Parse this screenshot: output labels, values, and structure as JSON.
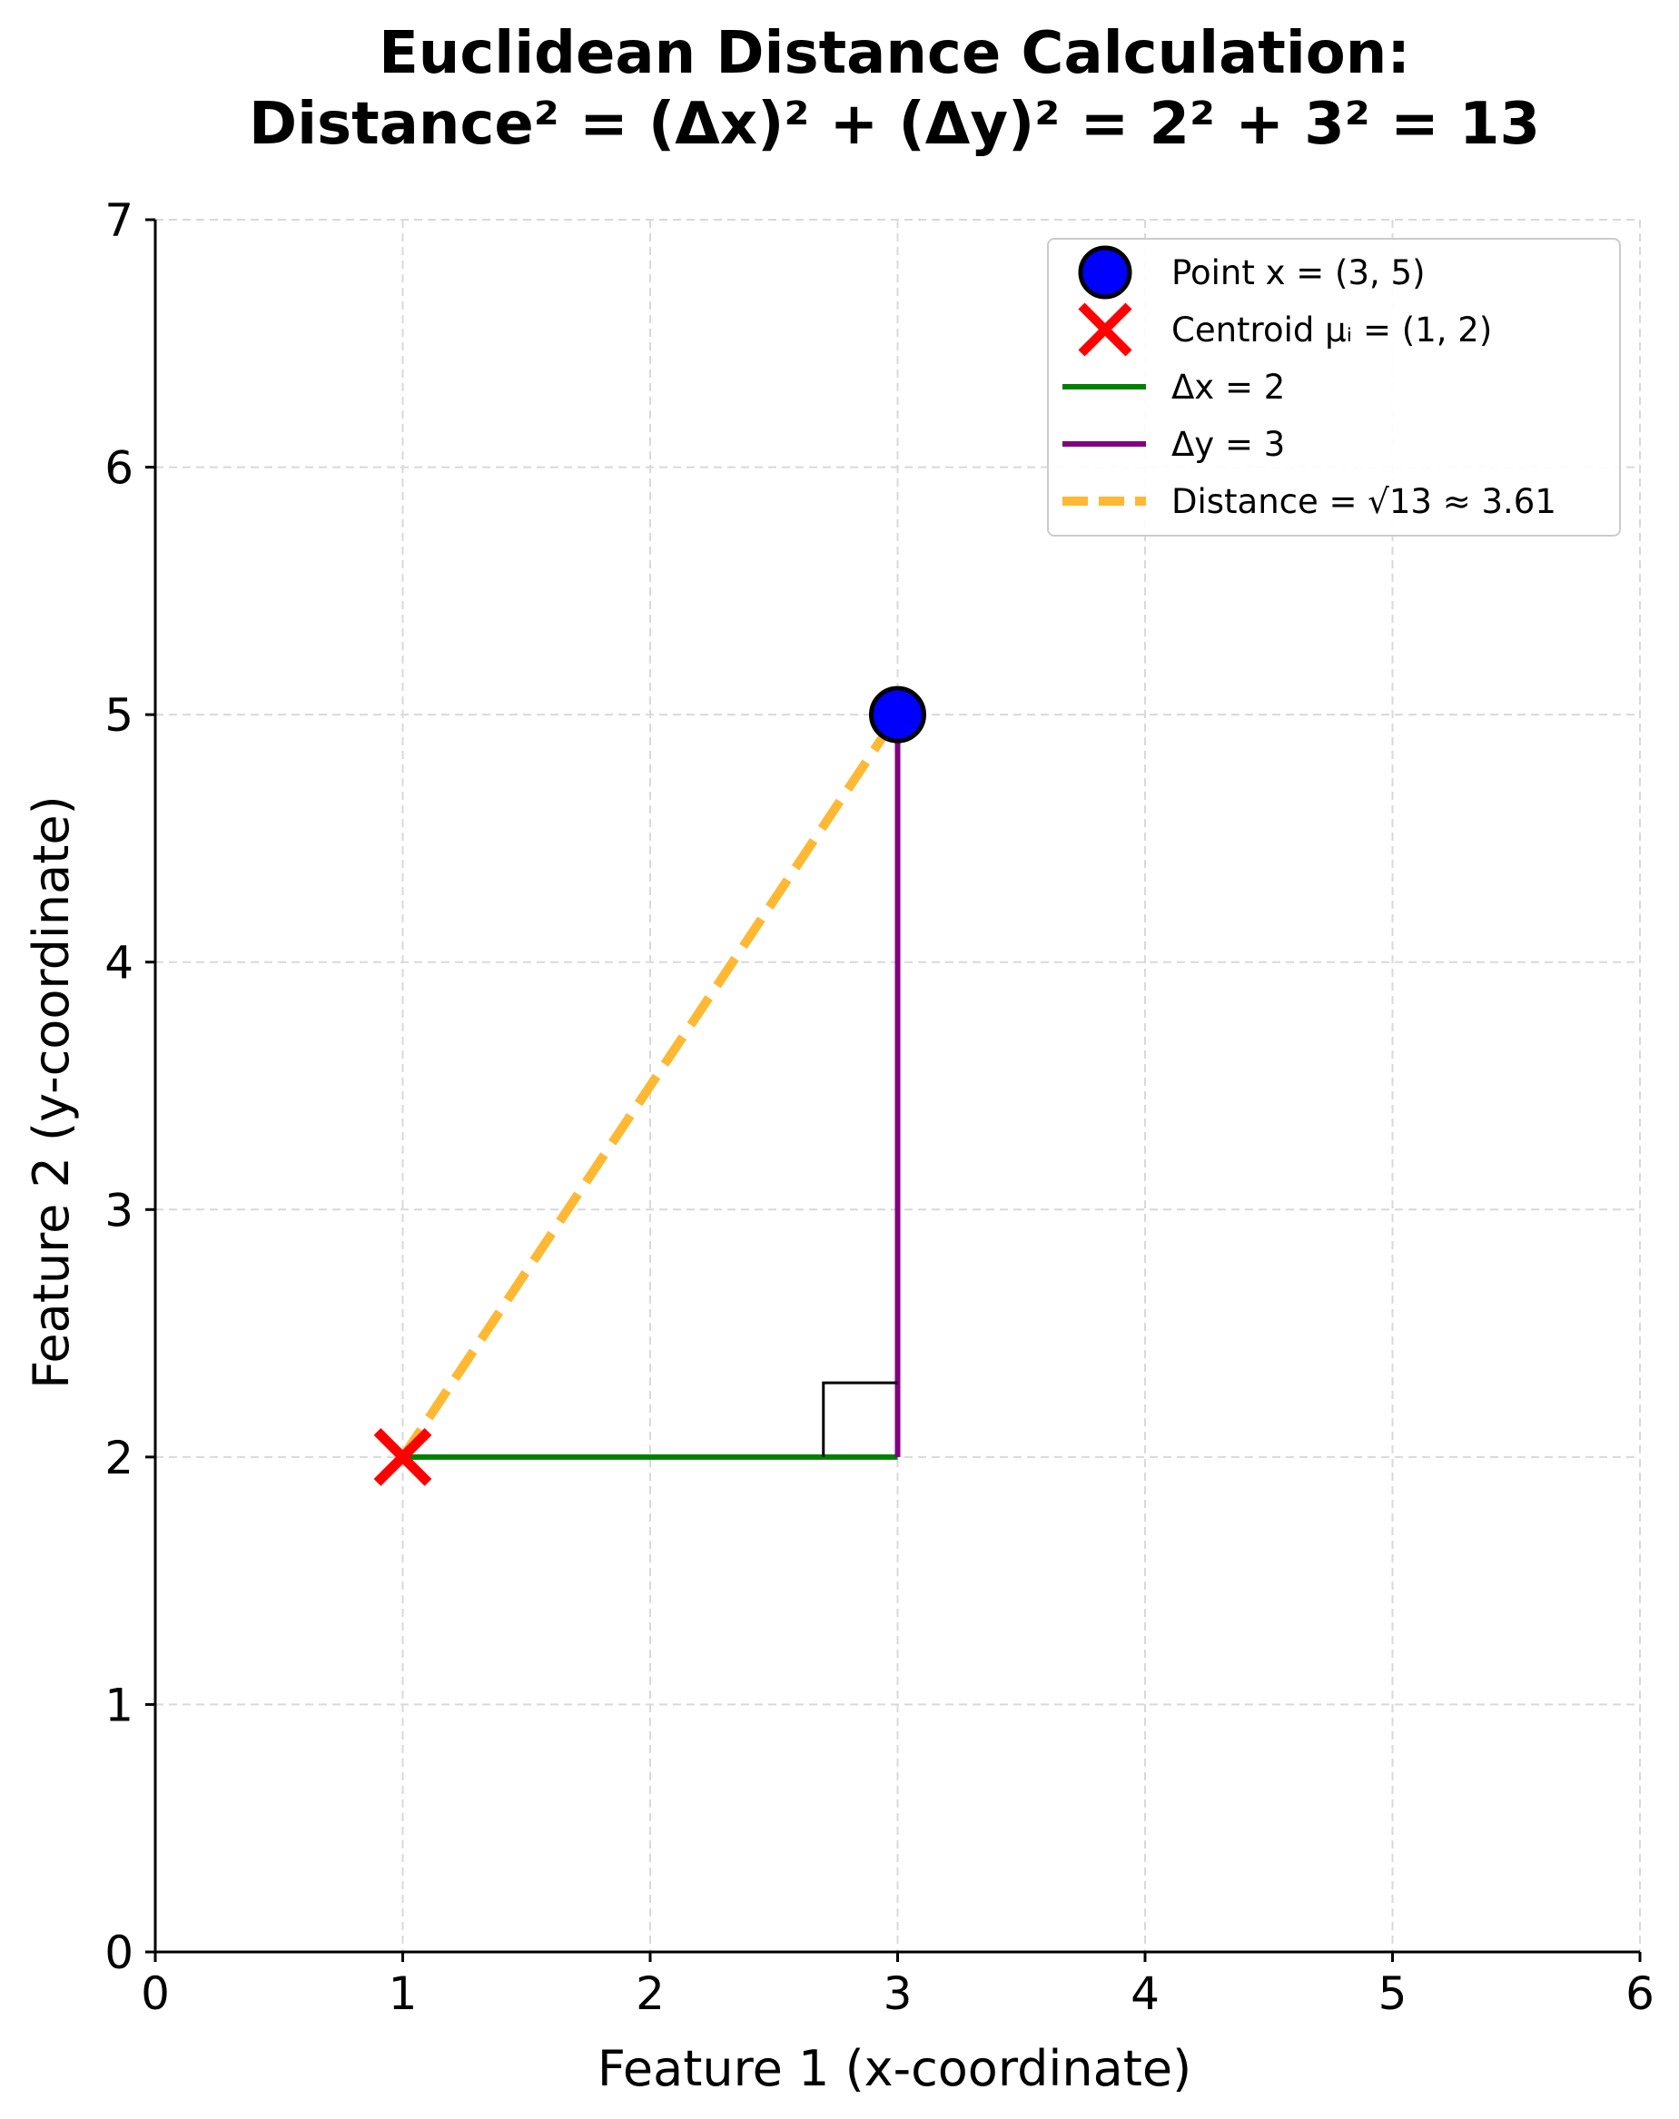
{
  "chart_data": {
    "type": "scatter",
    "title_lines": [
      "Euclidean Distance Calculation:",
      "Distance² = (Δx)² + (Δy)² = 2² + 3² = 13"
    ],
    "xlabel": "Feature 1 (x-coordinate)",
    "ylabel": "Feature 2 (y-coordinate)",
    "xlim": [
      0,
      6
    ],
    "ylim": [
      0,
      7
    ],
    "xticks": [
      0,
      1,
      2,
      3,
      4,
      5,
      6
    ],
    "yticks": [
      0,
      1,
      2,
      3,
      4,
      5,
      6,
      7
    ],
    "grid": true,
    "point": {
      "x": 3,
      "y": 5,
      "color": "#0000ff"
    },
    "centroid": {
      "x": 1,
      "y": 2,
      "color": "#ff0000"
    },
    "dx_segment": {
      "x": [
        1,
        3
      ],
      "y": [
        2,
        2
      ],
      "color": "#008000"
    },
    "dy_segment": {
      "x": [
        3,
        3
      ],
      "y": [
        2,
        5
      ],
      "color": "#800080"
    },
    "distance_segment": {
      "x": [
        1,
        3
      ],
      "y": [
        2,
        5
      ],
      "color": "#ffb833"
    },
    "right_angle_marker": {
      "corner": [
        3,
        2
      ],
      "size_x": 0.3,
      "size_y": 0.3
    },
    "legend": {
      "location": "top-right",
      "entries": [
        {
          "label": "Point x = (3, 5)",
          "kind": "point"
        },
        {
          "label": "Centroid μᵢ = (1, 2)",
          "kind": "centroid"
        },
        {
          "label": "Δx = 2",
          "kind": "dx"
        },
        {
          "label": "Δy = 3",
          "kind": "dy"
        },
        {
          "label": "Distance = √13 ≈ 3.61",
          "kind": "distance"
        }
      ]
    }
  }
}
